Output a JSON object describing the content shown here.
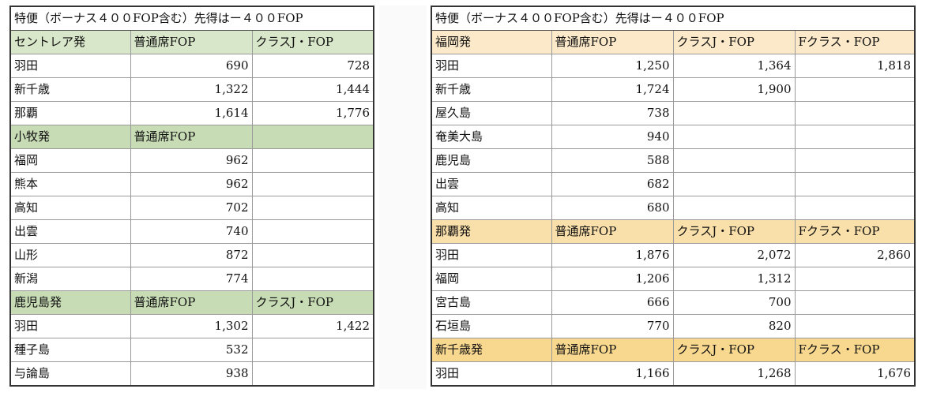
{
  "left": {
    "title": "特便（ボーナス４００FOP含む）先得はー４００FOP",
    "sections": [
      {
        "header": [
          "セントレア発",
          "普通席FOP",
          "クラスJ・FOP"
        ],
        "rows": [
          [
            "羽田",
            "690",
            "728"
          ],
          [
            "新千歳",
            "1,322",
            "1,444"
          ],
          [
            "那覇",
            "1,614",
            "1,776"
          ]
        ]
      },
      {
        "header": [
          "小牧発",
          "普通席FOP",
          ""
        ],
        "rows": [
          [
            "福岡",
            "962",
            ""
          ],
          [
            "熊本",
            "962",
            ""
          ],
          [
            "高知",
            "702",
            ""
          ],
          [
            "出雲",
            "740",
            ""
          ],
          [
            "山形",
            "872",
            ""
          ],
          [
            "新潟",
            "774",
            ""
          ]
        ]
      },
      {
        "header": [
          "鹿児島発",
          "普通席FOP",
          "クラスJ・FOP"
        ],
        "rows": [
          [
            "羽田",
            "1,302",
            "1,422"
          ],
          [
            "種子島",
            "532",
            ""
          ],
          [
            "与論島",
            "938",
            ""
          ]
        ]
      }
    ]
  },
  "right": {
    "title": "特便（ボーナス４００FOP含む）先得はー４００FOP",
    "sections": [
      {
        "header": [
          "福岡発",
          "普通席FOP",
          "クラスJ・FOP",
          "Fクラス・FOP"
        ],
        "rows": [
          [
            "羽田",
            "1,250",
            "1,364",
            "1,818"
          ],
          [
            "新千歳",
            "1,724",
            "1,900",
            ""
          ],
          [
            "屋久島",
            "738",
            "",
            ""
          ],
          [
            "奄美大島",
            "940",
            "",
            ""
          ],
          [
            "鹿児島",
            "588",
            "",
            ""
          ],
          [
            "出雲",
            "682",
            "",
            ""
          ],
          [
            "高知",
            "680",
            "",
            ""
          ]
        ]
      },
      {
        "header": [
          "那覇発",
          "普通席FOP",
          "クラスJ・FOP",
          "Fクラス・FOP"
        ],
        "rows": [
          [
            "羽田",
            "1,876",
            "2,072",
            "2,860"
          ],
          [
            "福岡",
            "1,206",
            "1,312",
            ""
          ],
          [
            "宮古島",
            "666",
            "700",
            ""
          ],
          [
            "石垣島",
            "770",
            "820",
            ""
          ]
        ]
      },
      {
        "header": [
          "新千歳発",
          "普通席FOP",
          "クラスJ・FOP",
          "Fクラス・FOP"
        ],
        "rows": [
          [
            "羽田",
            "1,166",
            "1,268",
            "1,676"
          ]
        ]
      }
    ]
  }
}
